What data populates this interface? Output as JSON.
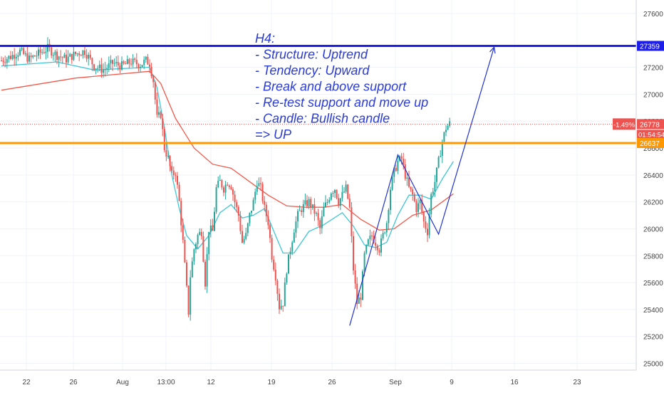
{
  "chart_data": {
    "type": "candlestick",
    "timeframe_note": "H4",
    "x_tick_labels": [
      "22",
      "26",
      "Aug",
      "13:00",
      "12",
      "19",
      "26",
      "Sep",
      "9",
      "16",
      "23"
    ],
    "y_tick_labels": [
      "27600",
      "27359",
      "27200",
      "27000",
      "26800",
      "26600",
      "26400",
      "26200",
      "26000",
      "25800",
      "25600",
      "25400",
      "25200",
      "25000"
    ],
    "y_ticks": [
      27600,
      27200,
      27000,
      26800,
      26600,
      26400,
      26200,
      26000,
      25800,
      25600,
      25400,
      25200,
      25000
    ],
    "ylim": [
      24950,
      27700
    ],
    "grid": true,
    "price_labels": {
      "resistance": "27359",
      "current": "26778",
      "change": "-1.49%",
      "countdown": "01:54:54",
      "support": "26637"
    },
    "levels": [
      {
        "price": 27359,
        "color": "#1e1eea"
      },
      {
        "price": 26637,
        "color": "#ff9800"
      },
      {
        "price": 26778,
        "color": "#ef5350"
      }
    ],
    "close_path": [
      [
        0,
        27250
      ],
      [
        5,
        27280
      ],
      [
        10,
        27320
      ],
      [
        15,
        27260
      ],
      [
        20,
        27300
      ],
      [
        25,
        27340
      ],
      [
        30,
        27290
      ],
      [
        35,
        27260
      ],
      [
        40,
        27300
      ],
      [
        45,
        27320
      ],
      [
        50,
        27210
      ],
      [
        55,
        27180
      ],
      [
        60,
        27230
      ],
      [
        65,
        27210
      ],
      [
        70,
        27240
      ],
      [
        75,
        27220
      ],
      [
        78,
        27250
      ],
      [
        80,
        27230
      ],
      [
        82,
        27100
      ],
      [
        84,
        26820
      ],
      [
        86,
        26850
      ],
      [
        88,
        26600
      ],
      [
        90,
        26520
      ],
      [
        92,
        26400
      ],
      [
        94,
        26420
      ],
      [
        96,
        26200
      ],
      [
        98,
        25900
      ],
      [
        100,
        25550
      ],
      [
        101,
        25380
      ],
      [
        102,
        25650
      ],
      [
        104,
        25850
      ],
      [
        106,
        25950
      ],
      [
        108,
        25980
      ],
      [
        110,
        25600
      ],
      [
        112,
        26000
      ],
      [
        114,
        25980
      ],
      [
        116,
        26300
      ],
      [
        118,
        26350
      ],
      [
        120,
        26300
      ],
      [
        122,
        26350
      ],
      [
        124,
        26320
      ],
      [
        126,
        26200
      ],
      [
        128,
        26100
      ],
      [
        130,
        25900
      ],
      [
        132,
        25950
      ],
      [
        134,
        26100
      ],
      [
        136,
        26200
      ],
      [
        138,
        26350
      ],
      [
        140,
        26300
      ],
      [
        142,
        26150
      ],
      [
        144,
        26050
      ],
      [
        146,
        25800
      ],
      [
        148,
        25650
      ],
      [
        150,
        25420
      ],
      [
        152,
        25450
      ],
      [
        154,
        25700
      ],
      [
        156,
        25850
      ],
      [
        158,
        26000
      ],
      [
        160,
        26100
      ],
      [
        162,
        26150
      ],
      [
        164,
        26180
      ],
      [
        166,
        26200
      ],
      [
        168,
        26150
      ],
      [
        170,
        26100
      ],
      [
        172,
        26000
      ],
      [
        174,
        26150
      ],
      [
        176,
        26200
      ],
      [
        178,
        26280
      ],
      [
        180,
        26300
      ],
      [
        182,
        26200
      ],
      [
        184,
        26250
      ],
      [
        186,
        26300
      ],
      [
        188,
        26150
      ],
      [
        190,
        25700
      ],
      [
        192,
        25450
      ],
      [
        194,
        25500
      ],
      [
        196,
        25800
      ],
      [
        198,
        25900
      ],
      [
        200,
        25950
      ],
      [
        202,
        25900
      ],
      [
        204,
        25850
      ],
      [
        206,
        25950
      ],
      [
        208,
        26050
      ],
      [
        210,
        26300
      ],
      [
        212,
        26420
      ],
      [
        214,
        26500
      ],
      [
        216,
        26520
      ],
      [
        218,
        26400
      ],
      [
        220,
        26300
      ],
      [
        222,
        26250
      ],
      [
        224,
        26150
      ],
      [
        226,
        26200
      ],
      [
        228,
        26050
      ],
      [
        230,
        25980
      ],
      [
        232,
        26250
      ],
      [
        234,
        26350
      ],
      [
        236,
        26500
      ],
      [
        238,
        26650
      ],
      [
        240,
        26750
      ],
      [
        242,
        26780
      ]
    ],
    "ema_fast": [
      [
        0,
        27210
      ],
      [
        30,
        27240
      ],
      [
        50,
        27180
      ],
      [
        80,
        27200
      ],
      [
        84,
        27050
      ],
      [
        88,
        26750
      ],
      [
        92,
        26400
      ],
      [
        96,
        26150
      ],
      [
        100,
        25950
      ],
      [
        106,
        25850
      ],
      [
        112,
        25950
      ],
      [
        118,
        26120
      ],
      [
        124,
        26180
      ],
      [
        130,
        26080
      ],
      [
        136,
        26100
      ],
      [
        142,
        26150
      ],
      [
        148,
        25950
      ],
      [
        152,
        25820
      ],
      [
        158,
        25820
      ],
      [
        166,
        25980
      ],
      [
        174,
        26030
      ],
      [
        184,
        26120
      ],
      [
        190,
        26020
      ],
      [
        196,
        25880
      ],
      [
        202,
        25860
      ],
      [
        208,
        25900
      ],
      [
        214,
        26100
      ],
      [
        220,
        26250
      ],
      [
        226,
        26250
      ],
      [
        232,
        26220
      ],
      [
        238,
        26370
      ],
      [
        244,
        26500
      ]
    ],
    "ema_slow": [
      [
        0,
        27030
      ],
      [
        40,
        27120
      ],
      [
        80,
        27170
      ],
      [
        86,
        27080
      ],
      [
        94,
        26820
      ],
      [
        104,
        26600
      ],
      [
        114,
        26480
      ],
      [
        124,
        26450
      ],
      [
        134,
        26350
      ],
      [
        144,
        26250
      ],
      [
        154,
        26170
      ],
      [
        164,
        26160
      ],
      [
        174,
        26160
      ],
      [
        184,
        26180
      ],
      [
        194,
        26070
      ],
      [
        204,
        25990
      ],
      [
        212,
        26000
      ],
      [
        222,
        26100
      ],
      [
        232,
        26140
      ],
      [
        244,
        26260
      ]
    ],
    "trend_line": [
      [
        188,
        25280
      ],
      [
        214,
        26550
      ],
      [
        236,
        25960
      ],
      [
        266,
        27350
      ]
    ],
    "annotation": [
      "H4:",
      "- Structure: Uptrend",
      "- Tendency: Upward",
      "- Break and above support",
      "- Re-test support and move up",
      "- Candle: Bullish candle",
      "=> UP"
    ]
  }
}
